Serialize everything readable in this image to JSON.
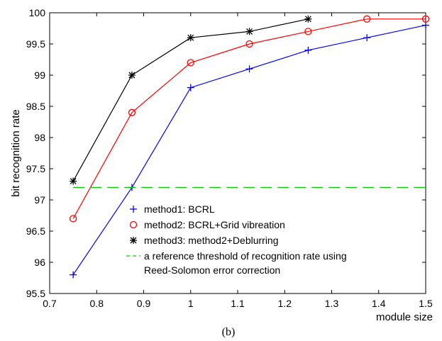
{
  "caption": "(b)",
  "chart_data": {
    "type": "line",
    "xlabel": "module size",
    "ylabel": "bit recognition rate",
    "xlim": [
      0.7,
      1.5
    ],
    "ylim": [
      95.5,
      100
    ],
    "xticks": [
      "0.7",
      "0.8",
      "0.9",
      "1",
      "1.1",
      "1.2",
      "1.3",
      "1.4",
      "1.5"
    ],
    "yticks": [
      "95.5",
      "96",
      "96.5",
      "97",
      "97.5",
      "98",
      "98.5",
      "99",
      "99.5",
      "100"
    ],
    "grid": false,
    "legend_position": "bottom-right",
    "series": [
      {
        "name": "method1: BCRL",
        "marker": "plus",
        "color": "#0000ff",
        "x": [
          0.75,
          0.875,
          1.0,
          1.125,
          1.25,
          1.375,
          1.5
        ],
        "y": [
          95.8,
          97.2,
          98.8,
          99.1,
          99.4,
          99.6,
          99.8
        ]
      },
      {
        "name": "method2: BCRL+Grid vibreation",
        "marker": "circle",
        "color": "#ff0000",
        "x": [
          0.75,
          0.875,
          1.0,
          1.125,
          1.25,
          1.375,
          1.5
        ],
        "y": [
          96.7,
          98.4,
          99.2,
          99.5,
          99.7,
          99.9,
          99.9
        ]
      },
      {
        "name": "method3: method2+Deblurring",
        "marker": "star",
        "color": "#000000",
        "x": [
          0.75,
          0.875,
          1.0,
          1.125,
          1.25
        ],
        "y": [
          97.3,
          99.0,
          99.6,
          99.7,
          99.9
        ]
      },
      {
        "name": "a reference threshold of recognition rate using",
        "name_line2": "Reed-Solomon error correction",
        "marker": "none",
        "style": "dashed",
        "color": "#00cc00",
        "x": [
          0.75,
          1.5
        ],
        "y": [
          97.2,
          97.2
        ]
      }
    ]
  }
}
